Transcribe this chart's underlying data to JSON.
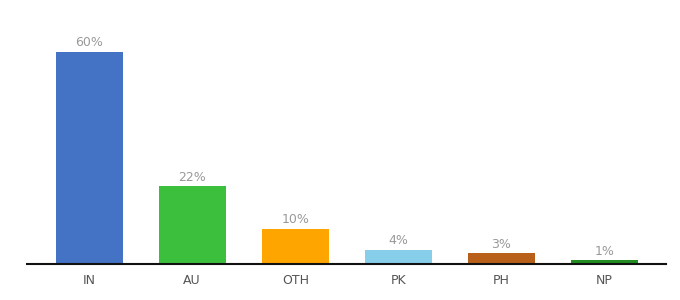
{
  "categories": [
    "IN",
    "AU",
    "OTH",
    "PK",
    "PH",
    "NP"
  ],
  "values": [
    60,
    22,
    10,
    4,
    3,
    1
  ],
  "bar_colors": [
    "#4472C4",
    "#3CBF3C",
    "#FFA500",
    "#87CEEB",
    "#B8601A",
    "#228B22"
  ],
  "labels": [
    "60%",
    "22%",
    "10%",
    "4%",
    "3%",
    "1%"
  ],
  "ylim": [
    0,
    72
  ],
  "background_color": "#ffffff",
  "label_fontsize": 9,
  "tick_fontsize": 9,
  "label_color": "#999999",
  "tick_color": "#555555",
  "bar_width": 0.65
}
